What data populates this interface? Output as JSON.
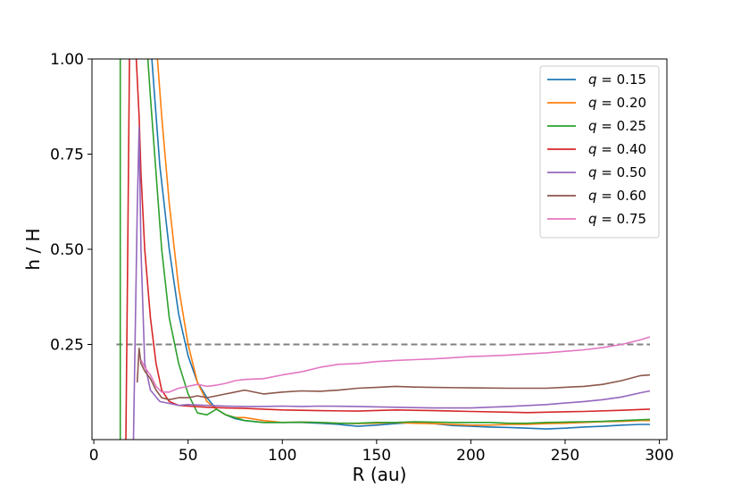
{
  "chart_data": {
    "type": "line",
    "xlabel": "R (au)",
    "ylabel": "h / H",
    "xlim": [
      -1,
      304
    ],
    "ylim": [
      0,
      1.0
    ],
    "xticks": [
      0,
      50,
      100,
      150,
      200,
      250,
      300
    ],
    "yticks": [
      0.25,
      0.5,
      0.75,
      1.0
    ],
    "xtick_labels": [
      "0",
      "50",
      "100",
      "150",
      "200",
      "250",
      "300"
    ],
    "ytick_labels": [
      "0.25",
      "0.50",
      "0.75",
      "1.00"
    ],
    "grid": false,
    "legend_position": "top-right",
    "reference_line": {
      "y": 0.25,
      "x_range": [
        12,
        295
      ],
      "style": "dashed",
      "color": "#808080"
    },
    "series": [
      {
        "name": "q = 0.15",
        "q": "0.15",
        "color": "#1f77b4",
        "x": [
          30,
          35,
          40,
          45,
          50,
          55,
          60,
          65,
          70,
          75,
          80,
          90,
          100,
          110,
          120,
          130,
          140,
          150,
          160,
          170,
          180,
          190,
          200,
          210,
          220,
          230,
          240,
          250,
          260,
          270,
          280,
          290,
          295
        ],
        "y": [
          1.05,
          0.72,
          0.5,
          0.33,
          0.22,
          0.15,
          0.11,
          0.08,
          0.065,
          0.055,
          0.05,
          0.045,
          0.045,
          0.045,
          0.043,
          0.04,
          0.035,
          0.038,
          0.042,
          0.045,
          0.042,
          0.037,
          0.035,
          0.033,
          0.032,
          0.03,
          0.028,
          0.03,
          0.033,
          0.035,
          0.038,
          0.04,
          0.04
        ]
      },
      {
        "name": "q = 0.20",
        "q": "0.20",
        "color": "#ff7f0e",
        "x": [
          33,
          36,
          40,
          45,
          50,
          55,
          60,
          65,
          70,
          75,
          80,
          90,
          100,
          110,
          120,
          130,
          140,
          150,
          160,
          170,
          180,
          190,
          200,
          210,
          220,
          230,
          240,
          250,
          260,
          270,
          280,
          290,
          295
        ],
        "y": [
          1.05,
          0.85,
          0.62,
          0.4,
          0.25,
          0.15,
          0.1,
          0.08,
          0.065,
          0.058,
          0.058,
          0.05,
          0.045,
          0.046,
          0.045,
          0.043,
          0.042,
          0.043,
          0.045,
          0.043,
          0.042,
          0.04,
          0.038,
          0.038,
          0.04,
          0.04,
          0.042,
          0.043,
          0.045,
          0.047,
          0.048,
          0.05,
          0.05
        ]
      },
      {
        "name": "q = 0.25",
        "q": "0.25",
        "color": "#2ca02c",
        "x": [
          14,
          14,
          14,
          28,
          30,
          33,
          36,
          40,
          45,
          50,
          55,
          60,
          65,
          70,
          80,
          90,
          100,
          110,
          120,
          130,
          140,
          150,
          160,
          170,
          180,
          190,
          200,
          210,
          220,
          230,
          240,
          250,
          260,
          270,
          280,
          290,
          295
        ],
        "y": [
          0,
          1.05,
          null,
          1.05,
          0.9,
          0.7,
          0.5,
          0.32,
          0.2,
          0.12,
          0.07,
          0.065,
          0.08,
          0.065,
          0.05,
          0.045,
          0.045,
          0.046,
          0.045,
          0.043,
          0.043,
          0.045,
          0.045,
          0.047,
          0.046,
          0.045,
          0.045,
          0.045,
          0.043,
          0.043,
          0.045,
          0.046,
          0.047,
          0.048,
          0.05,
          0.052,
          0.053
        ]
      },
      {
        "name": "q = 0.40",
        "q": "0.40",
        "color": "#d62728",
        "x": [
          17,
          18,
          19,
          20,
          22,
          24,
          25,
          27,
          30,
          33,
          36,
          40,
          45,
          50,
          60,
          70,
          80,
          90,
          100,
          110,
          120,
          140,
          160,
          180,
          200,
          220,
          230,
          240,
          260,
          280,
          290,
          295
        ],
        "y": [
          0,
          0.5,
          1.05,
          null,
          1.05,
          0.85,
          0.7,
          0.5,
          0.32,
          0.2,
          0.13,
          0.1,
          0.09,
          0.088,
          0.085,
          0.083,
          0.082,
          0.08,
          0.078,
          0.077,
          0.076,
          0.075,
          0.078,
          0.076,
          0.074,
          0.072,
          0.071,
          0.072,
          0.074,
          0.077,
          0.079,
          0.08
        ]
      },
      {
        "name": "q = 0.50",
        "q": "0.50",
        "color": "#9467bd",
        "x": [
          21,
          22,
          23,
          24,
          25,
          27,
          30,
          35,
          40,
          45,
          50,
          60,
          70,
          80,
          90,
          100,
          110,
          120,
          140,
          160,
          180,
          200,
          220,
          240,
          260,
          270,
          280,
          290,
          295
        ],
        "y": [
          0,
          0.3,
          0.6,
          0.82,
          0.5,
          0.2,
          0.13,
          0.1,
          0.095,
          0.09,
          0.092,
          0.09,
          0.088,
          0.087,
          0.087,
          0.088,
          0.087,
          0.088,
          0.087,
          0.085,
          0.083,
          0.083,
          0.087,
          0.092,
          0.1,
          0.105,
          0.112,
          0.123,
          0.128
        ]
      },
      {
        "name": "q = 0.60",
        "q": "0.60",
        "color": "#8c564b",
        "x": [
          23,
          24,
          25,
          27,
          30,
          33,
          36,
          40,
          45,
          50,
          55,
          60,
          65,
          70,
          80,
          90,
          100,
          110,
          120,
          130,
          140,
          150,
          160,
          170,
          180,
          200,
          220,
          240,
          260,
          270,
          280,
          290,
          295
        ],
        "y": [
          0.15,
          0.24,
          0.2,
          0.18,
          0.16,
          0.13,
          0.11,
          0.105,
          0.11,
          0.11,
          0.115,
          0.11,
          0.115,
          0.12,
          0.13,
          0.12,
          0.125,
          0.128,
          0.127,
          0.13,
          0.135,
          0.137,
          0.14,
          0.138,
          0.137,
          0.136,
          0.135,
          0.135,
          0.14,
          0.145,
          0.155,
          0.168,
          0.17
        ]
      },
      {
        "name": "q = 0.75",
        "q": "0.75",
        "color": "#e377c2",
        "x": [
          25,
          27,
          30,
          33,
          36,
          40,
          45,
          50,
          55,
          60,
          65,
          70,
          75,
          80,
          90,
          100,
          110,
          120,
          130,
          140,
          150,
          160,
          170,
          180,
          190,
          200,
          210,
          220,
          230,
          240,
          250,
          260,
          270,
          280,
          290,
          295
        ],
        "y": [
          0.21,
          0.19,
          0.17,
          0.14,
          0.125,
          0.125,
          0.135,
          0.14,
          0.145,
          0.14,
          0.143,
          0.148,
          0.155,
          0.158,
          0.16,
          0.17,
          0.178,
          0.19,
          0.198,
          0.2,
          0.205,
          0.208,
          0.21,
          0.212,
          0.215,
          0.218,
          0.22,
          0.222,
          0.225,
          0.228,
          0.232,
          0.236,
          0.242,
          0.25,
          0.262,
          0.27
        ]
      }
    ]
  }
}
